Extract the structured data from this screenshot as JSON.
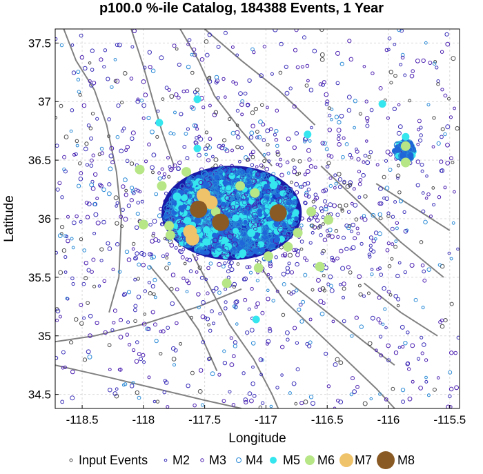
{
  "chart_data": {
    "type": "scatter",
    "title": "p100.0 %-ile Catalog, 184388 Events, 1 Year",
    "xlabel": "Longitude",
    "ylabel": "Latitude",
    "xlim": [
      -118.72,
      -115.42
    ],
    "ylim": [
      34.38,
      37.62
    ],
    "xticks": [
      -118.5,
      -118,
      -117.5,
      -117,
      -116.5,
      -116,
      -115.5
    ],
    "xtick_labels": [
      "-118.5",
      "-118",
      "-117.5",
      "-117",
      "-116.5",
      "-116",
      "-115.5"
    ],
    "yticks": [
      34.5,
      35,
      35.5,
      36,
      36.5,
      37,
      37.5
    ],
    "ytick_labels": [
      "34.5",
      "35",
      "35.5",
      "36",
      "36.5",
      "37",
      "37.5"
    ],
    "grid": true,
    "legend_position": "bottom",
    "legend": [
      {
        "label": "Input Events",
        "style": "input"
      },
      {
        "label": "M2",
        "style": "m2"
      },
      {
        "label": "M3",
        "style": "m3"
      },
      {
        "label": "M4",
        "style": "m4"
      },
      {
        "label": "M5",
        "style": "m5"
      },
      {
        "label": "M6",
        "style": "m6"
      },
      {
        "label": "M7",
        "style": "m7"
      },
      {
        "label": "M8",
        "style": "m8"
      }
    ],
    "colors": {
      "input": "#4a4a4a",
      "m2": "#3a2fb8",
      "m3": "#4b1fb0",
      "m4": "#2a8ad6",
      "m5": "#35e6ef",
      "m6": "#b6e685",
      "m7": "#efc36a",
      "m8": "#8a5a24",
      "cluster_dark": "#1a1aa8",
      "cluster_mid": "#1f66d8",
      "fault": "#808080"
    },
    "clusters": [
      {
        "center": [
          -117.28,
          36.05
        ],
        "radius_deg": [
          0.55,
          0.38
        ],
        "level": "core"
      },
      {
        "center": [
          -115.87,
          36.58
        ],
        "radius_deg": [
          0.08,
          0.09
        ],
        "level": "core"
      }
    ],
    "large_events": [
      {
        "x": -117.55,
        "y": 36.08,
        "mag": "M8"
      },
      {
        "x": -117.37,
        "y": 35.97,
        "mag": "M8"
      },
      {
        "x": -116.9,
        "y": 36.05,
        "mag": "M8"
      },
      {
        "x": -117.62,
        "y": 35.89,
        "mag": "M7"
      },
      {
        "x": -117.45,
        "y": 36.14,
        "mag": "M7"
      },
      {
        "x": -117.6,
        "y": 35.83,
        "mag": "M7"
      },
      {
        "x": -117.51,
        "y": 36.2,
        "mag": "M7"
      },
      {
        "x": -117.41,
        "y": 36.06,
        "mag": "M6"
      },
      {
        "x": -117.21,
        "y": 36.28,
        "mag": "M6"
      },
      {
        "x": -117.78,
        "y": 35.86,
        "mag": "M6"
      },
      {
        "x": -116.98,
        "y": 35.68,
        "mag": "M6"
      },
      {
        "x": -116.49,
        "y": 35.99,
        "mag": "M6"
      },
      {
        "x": -116.56,
        "y": 35.59,
        "mag": "M6"
      },
      {
        "x": -116.63,
        "y": 36.06,
        "mag": "M6"
      },
      {
        "x": -118.03,
        "y": 36.42,
        "mag": "M6"
      },
      {
        "x": -117.85,
        "y": 36.28,
        "mag": "M6"
      },
      {
        "x": -117.06,
        "y": 35.58,
        "mag": "M6"
      },
      {
        "x": -117.32,
        "y": 35.45,
        "mag": "M6"
      },
      {
        "x": -115.86,
        "y": 36.62,
        "mag": "M6"
      },
      {
        "x": -115.86,
        "y": 36.48,
        "mag": "M6"
      },
      {
        "x": -117.09,
        "y": 36.22,
        "mag": "M6"
      },
      {
        "x": -118.0,
        "y": 35.95,
        "mag": "M6"
      },
      {
        "x": -117.79,
        "y": 35.94,
        "mag": "M6"
      },
      {
        "x": -116.82,
        "y": 35.76,
        "mag": "M6"
      },
      {
        "x": -117.65,
        "y": 36.4,
        "mag": "M6"
      },
      {
        "x": -116.74,
        "y": 35.88,
        "mag": "M6"
      },
      {
        "x": -115.86,
        "y": 36.7,
        "mag": "M5"
      },
      {
        "x": -117.08,
        "y": 35.14,
        "mag": "M5"
      },
      {
        "x": -117.87,
        "y": 36.82,
        "mag": "M5"
      },
      {
        "x": -117.56,
        "y": 36.6,
        "mag": "M5"
      },
      {
        "x": -116.66,
        "y": 36.72,
        "mag": "M5"
      },
      {
        "x": -117.56,
        "y": 37.02,
        "mag": "M5"
      },
      {
        "x": -116.05,
        "y": 36.98,
        "mag": "M5"
      }
    ],
    "faults": [
      [
        [
          -118.65,
          37.62
        ],
        [
          -118.55,
          37.35
        ],
        [
          -118.4,
          37.1
        ],
        [
          -118.3,
          36.8
        ],
        [
          -118.22,
          36.4
        ],
        [
          -118.18,
          36.0
        ],
        [
          -118.2,
          35.5
        ],
        [
          -118.28,
          35.2
        ]
      ],
      [
        [
          -118.1,
          37.62
        ],
        [
          -118.0,
          37.3
        ],
        [
          -117.92,
          37.0
        ],
        [
          -117.85,
          36.75
        ],
        [
          -117.75,
          36.45
        ]
      ],
      [
        [
          -117.7,
          37.62
        ],
        [
          -117.55,
          37.35
        ],
        [
          -117.42,
          37.05
        ],
        [
          -117.2,
          36.75
        ],
        [
          -116.95,
          36.45
        ]
      ],
      [
        [
          -117.5,
          37.62
        ],
        [
          -117.2,
          37.35
        ],
        [
          -116.9,
          37.1
        ],
        [
          -116.6,
          36.8
        ]
      ],
      [
        [
          -116.55,
          36.45
        ],
        [
          -116.2,
          36.1
        ],
        [
          -115.9,
          35.8
        ],
        [
          -115.55,
          35.5
        ]
      ],
      [
        [
          -118.72,
          34.95
        ],
        [
          -118.4,
          35.0
        ],
        [
          -118.0,
          35.1
        ],
        [
          -117.55,
          35.25
        ],
        [
          -117.2,
          35.4
        ]
      ],
      [
        [
          -117.6,
          35.7
        ],
        [
          -117.45,
          35.4
        ],
        [
          -117.3,
          35.1
        ],
        [
          -117.1,
          34.8
        ],
        [
          -116.95,
          34.5
        ],
        [
          -116.9,
          34.38
        ]
      ],
      [
        [
          -117.05,
          35.6
        ],
        [
          -116.85,
          35.3
        ],
        [
          -116.6,
          35.05
        ],
        [
          -116.35,
          34.8
        ],
        [
          -116.1,
          34.55
        ],
        [
          -115.95,
          34.38
        ]
      ],
      [
        [
          -116.8,
          35.45
        ],
        [
          -116.5,
          35.2
        ],
        [
          -116.2,
          34.95
        ],
        [
          -115.95,
          34.75
        ]
      ],
      [
        [
          -118.72,
          34.75
        ],
        [
          -118.3,
          34.65
        ],
        [
          -117.9,
          34.55
        ],
        [
          -117.5,
          34.45
        ],
        [
          -117.2,
          34.38
        ]
      ],
      [
        [
          -116.2,
          35.45
        ],
        [
          -115.9,
          35.2
        ],
        [
          -115.6,
          35.0
        ]
      ],
      [
        [
          -117.95,
          35.6
        ],
        [
          -117.75,
          35.35
        ],
        [
          -117.55,
          35.05
        ],
        [
          -117.4,
          34.7
        ]
      ],
      [
        [
          -116.1,
          36.3
        ],
        [
          -115.8,
          36.1
        ],
        [
          -115.5,
          35.9
        ]
      ]
    ]
  }
}
